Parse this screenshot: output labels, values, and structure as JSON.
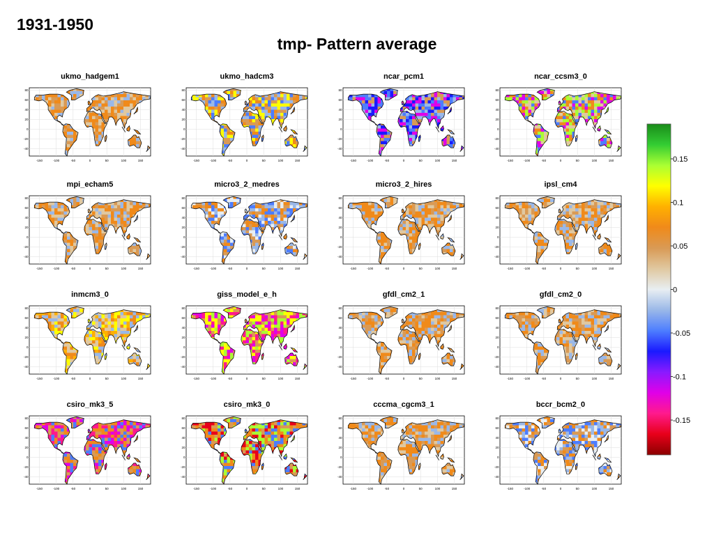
{
  "page": {
    "period": "1931-1950",
    "title": "tmp- Pattern average"
  },
  "chart_data": {
    "type": "heatmap",
    "description_of_panels": "Global land maps of temperature pattern average per model",
    "x_ticks": [
      "-150",
      "-100",
      "-50",
      "0",
      "50",
      "100",
      "150"
    ],
    "y_ticks": [
      "80",
      "60",
      "40",
      "20",
      "0",
      "-20",
      "-40"
    ],
    "xlim": [
      -180,
      180
    ],
    "ylim": [
      -55,
      85
    ],
    "panels": [
      {
        "name": "ukmo_hadgem1",
        "dominant": "orange"
      },
      {
        "name": "ukmo_hadcm3",
        "dominant": "mixed"
      },
      {
        "name": "ncar_pcm1",
        "dominant": "blue-magenta"
      },
      {
        "name": "ncar_ccsm3_0",
        "dominant": "mixed-green"
      },
      {
        "name": "mpi_echam5",
        "dominant": "orange"
      },
      {
        "name": "micro3_2_medres",
        "dominant": "orange-blue"
      },
      {
        "name": "micro3_2_hires",
        "dominant": "orange"
      },
      {
        "name": "ipsl_cm4",
        "dominant": "orange"
      },
      {
        "name": "inmcm3_0",
        "dominant": "yellow"
      },
      {
        "name": "giss_model_e_h",
        "dominant": "magenta-yellow"
      },
      {
        "name": "gfdl_cm2_1",
        "dominant": "orange"
      },
      {
        "name": "gfdl_cm2_0",
        "dominant": "orange"
      },
      {
        "name": "csiro_mk3_5",
        "dominant": "magenta-orange"
      },
      {
        "name": "csiro_mk3_0",
        "dominant": "red-orange"
      },
      {
        "name": "cccma_cgcm3_1",
        "dominant": "orange"
      },
      {
        "name": "bccr_bcm2_0",
        "dominant": "orange-blue"
      }
    ],
    "colorbar": {
      "ticks": [
        "0.15",
        "0.1",
        "0.05",
        "0",
        "-0.05",
        "-0.1",
        "-0.15"
      ],
      "tick_values": [
        0.15,
        0.1,
        0.05,
        0,
        -0.05,
        -0.1,
        -0.15
      ],
      "range": [
        -0.19,
        0.19
      ],
      "colors": [
        "#8b0000",
        "#e8001a",
        "#ff1a8c",
        "#e000e8",
        "#8a1aff",
        "#1a1aff",
        "#4d7dff",
        "#9ab8e8",
        "#e8eef2",
        "#e0c8a0",
        "#d99a55",
        "#f08a1a",
        "#ffb000",
        "#ffff00",
        "#aaff33",
        "#33cc33",
        "#1a8c1a"
      ]
    }
  }
}
